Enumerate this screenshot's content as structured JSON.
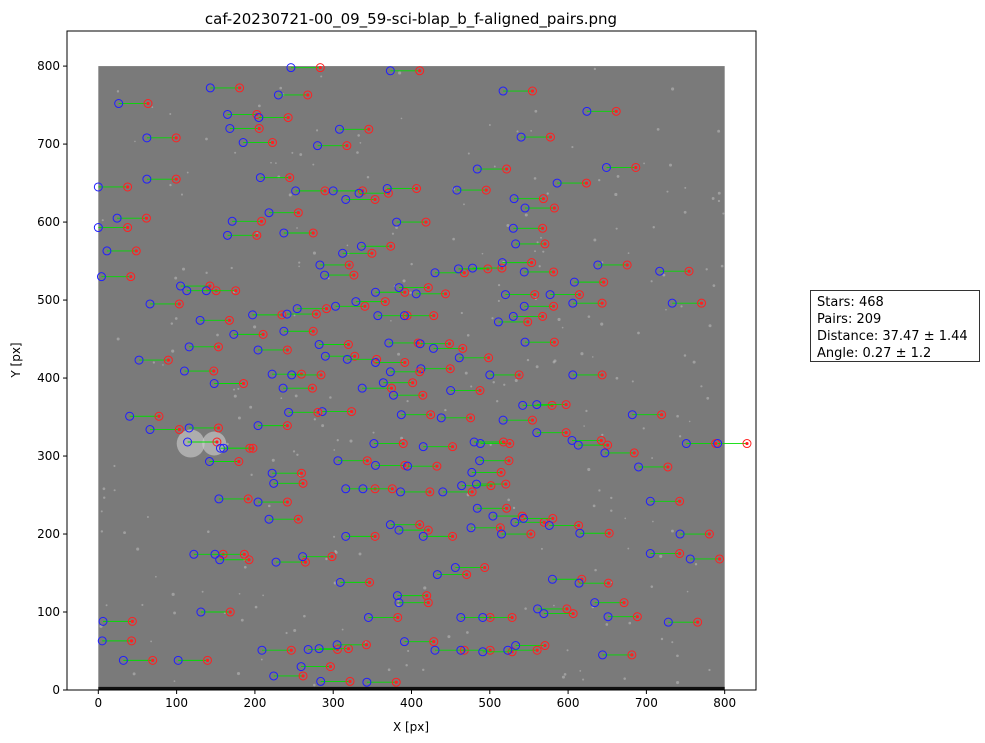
{
  "chart_data": {
    "type": "scatter",
    "title": "caf-20230721-00_09_59-sci-blap_b_f-aligned_pairs.png",
    "xlabel": "X [px]",
    "ylabel": "Y [px]",
    "xlim": [
      -40,
      840
    ],
    "ylim": [
      0,
      845
    ],
    "xticks": [
      0,
      100,
      200,
      300,
      400,
      500,
      600,
      700,
      800
    ],
    "yticks": [
      0,
      100,
      200,
      300,
      400,
      500,
      600,
      700,
      800
    ],
    "image_extent": {
      "x": [
        0,
        800
      ],
      "y": [
        0,
        800
      ]
    },
    "pair_offset": [
      37.47,
      0.0
    ],
    "colors": {
      "image_gray": "#7a7a7a",
      "source_marker": "#1f1fff",
      "target_marker": "#ff2020",
      "pair_line": "#00dd00"
    },
    "series": [
      {
        "name": "",
        "values": [
          [
            246,
            798
          ],
          [
            373,
            794
          ],
          [
            26,
            752
          ],
          [
            143,
            772
          ],
          [
            230,
            763
          ],
          [
            517,
            768
          ],
          [
            624,
            742
          ],
          [
            165,
            738
          ],
          [
            168,
            720
          ],
          [
            205,
            734
          ],
          [
            308,
            719
          ],
          [
            62,
            708
          ],
          [
            185,
            702
          ],
          [
            280,
            698
          ],
          [
            540,
            709
          ],
          [
            207,
            657
          ],
          [
            62,
            655
          ],
          [
            484,
            668
          ],
          [
            649,
            670
          ],
          [
            0,
            645
          ],
          [
            252,
            640
          ],
          [
            300,
            640
          ],
          [
            333,
            637
          ],
          [
            369,
            643
          ],
          [
            458,
            641
          ],
          [
            586,
            650
          ],
          [
            0,
            593
          ],
          [
            24,
            605
          ],
          [
            171,
            601
          ],
          [
            218,
            612
          ],
          [
            316,
            629
          ],
          [
            381,
            600
          ],
          [
            531,
            630
          ],
          [
            545,
            618
          ],
          [
            11,
            563
          ],
          [
            165,
            583
          ],
          [
            237,
            586
          ],
          [
            336,
            569
          ],
          [
            312,
            560
          ],
          [
            530,
            592
          ],
          [
            533,
            572
          ],
          [
            4,
            530
          ],
          [
            66,
            495
          ],
          [
            105,
            518
          ],
          [
            113,
            512
          ],
          [
            138,
            512
          ],
          [
            197,
            481
          ],
          [
            237,
            460
          ],
          [
            254,
            489
          ],
          [
            283,
            545
          ],
          [
            289,
            532
          ],
          [
            303,
            492
          ],
          [
            329,
            498
          ],
          [
            354,
            510
          ],
          [
            384,
            516
          ],
          [
            430,
            535
          ],
          [
            460,
            540
          ],
          [
            478,
            541
          ],
          [
            516,
            548
          ],
          [
            544,
            536
          ],
          [
            608,
            523
          ],
          [
            638,
            545
          ],
          [
            717,
            537
          ],
          [
            733,
            496
          ],
          [
            544,
            492
          ],
          [
            530,
            479
          ],
          [
            511,
            472
          ],
          [
            520,
            507
          ],
          [
            606,
            496
          ],
          [
            577,
            507
          ],
          [
            545,
            446
          ],
          [
            406,
            508
          ],
          [
            357,
            480
          ],
          [
            391,
            480
          ],
          [
            130,
            474
          ],
          [
            116,
            440
          ],
          [
            173,
            456
          ],
          [
            204,
            436
          ],
          [
            241,
            482
          ],
          [
            52,
            423
          ],
          [
            110,
            409
          ],
          [
            148,
            393
          ],
          [
            222,
            405
          ],
          [
            282,
            443
          ],
          [
            290,
            428
          ],
          [
            318,
            424
          ],
          [
            354,
            420
          ],
          [
            371,
            445
          ],
          [
            412,
            412
          ],
          [
            428,
            438
          ],
          [
            461,
            426
          ],
          [
            500,
            404
          ],
          [
            373,
            408
          ],
          [
            411,
            444
          ],
          [
            606,
            404
          ],
          [
            450,
            384
          ],
          [
            337,
            387
          ],
          [
            364,
            394
          ],
          [
            377,
            378
          ],
          [
            236,
            387
          ],
          [
            286,
            357
          ],
          [
            247,
            404
          ],
          [
            40,
            351
          ],
          [
            66,
            334
          ],
          [
            114,
            318
          ],
          [
            116,
            336
          ],
          [
            142,
            293
          ],
          [
            156,
            310
          ],
          [
            204,
            339
          ],
          [
            243,
            356
          ],
          [
            306,
            294
          ],
          [
            352,
            316
          ],
          [
            387,
            353
          ],
          [
            415,
            312
          ],
          [
            438,
            349
          ],
          [
            488,
            316
          ],
          [
            487,
            294
          ],
          [
            517,
            346
          ],
          [
            542,
            365
          ],
          [
            560,
            366
          ],
          [
            613,
            314
          ],
          [
            647,
            304
          ],
          [
            682,
            353
          ],
          [
            690,
            286
          ],
          [
            751,
            316
          ],
          [
            791,
            316
          ],
          [
            154,
            245
          ],
          [
            204,
            241
          ],
          [
            218,
            219
          ],
          [
            222,
            278
          ],
          [
            224,
            265
          ],
          [
            316,
            258
          ],
          [
            338,
            258
          ],
          [
            354,
            288
          ],
          [
            386,
            254
          ],
          [
            395,
            287
          ],
          [
            440,
            254
          ],
          [
            464,
            262
          ],
          [
            476,
            208
          ],
          [
            477,
            279
          ],
          [
            483,
            264
          ],
          [
            484,
            233
          ],
          [
            504,
            223
          ],
          [
            532,
            215
          ],
          [
            543,
            220
          ],
          [
            576,
            211
          ],
          [
            515,
            200
          ],
          [
            615,
            201
          ],
          [
            705,
            242
          ],
          [
            743,
            200
          ],
          [
            316,
            197
          ],
          [
            373,
            212
          ],
          [
            384,
            205
          ],
          [
            415,
            197
          ],
          [
            122,
            174
          ],
          [
            149,
            174
          ],
          [
            155,
            167
          ],
          [
            227,
            164
          ],
          [
            261,
            171
          ],
          [
            433,
            148
          ],
          [
            456,
            157
          ],
          [
            580,
            142
          ],
          [
            614,
            137
          ],
          [
            705,
            175
          ],
          [
            756,
            168
          ],
          [
            309,
            138
          ],
          [
            345,
            93
          ],
          [
            382,
            121
          ],
          [
            384,
            112
          ],
          [
            131,
            100
          ],
          [
            6,
            88
          ],
          [
            463,
            93
          ],
          [
            491,
            93
          ],
          [
            561,
            104
          ],
          [
            569,
            98
          ],
          [
            634,
            112
          ],
          [
            651,
            94
          ],
          [
            728,
            87
          ],
          [
            5,
            63
          ],
          [
            32,
            38
          ],
          [
            102,
            38
          ],
          [
            209,
            51
          ],
          [
            224,
            18
          ],
          [
            268,
            52
          ],
          [
            282,
            53
          ],
          [
            305,
            58
          ],
          [
            343,
            10
          ],
          [
            284,
            11
          ],
          [
            391,
            62
          ],
          [
            430,
            51
          ],
          [
            463,
            51
          ],
          [
            491,
            49
          ],
          [
            533,
            57
          ],
          [
            644,
            45
          ],
          [
            523,
            51
          ],
          [
            259,
            30
          ],
          [
            160,
            310
          ],
          [
            560,
            330
          ],
          [
            605,
            320
          ],
          [
            480,
            318
          ]
        ]
      }
    ]
  },
  "stats": {
    "stars": "Stars: 468",
    "pairs": "Pairs: 209",
    "distance": "Distance: 37.47 ± 1.44",
    "angle": "Angle: 0.27 ± 1.2"
  }
}
